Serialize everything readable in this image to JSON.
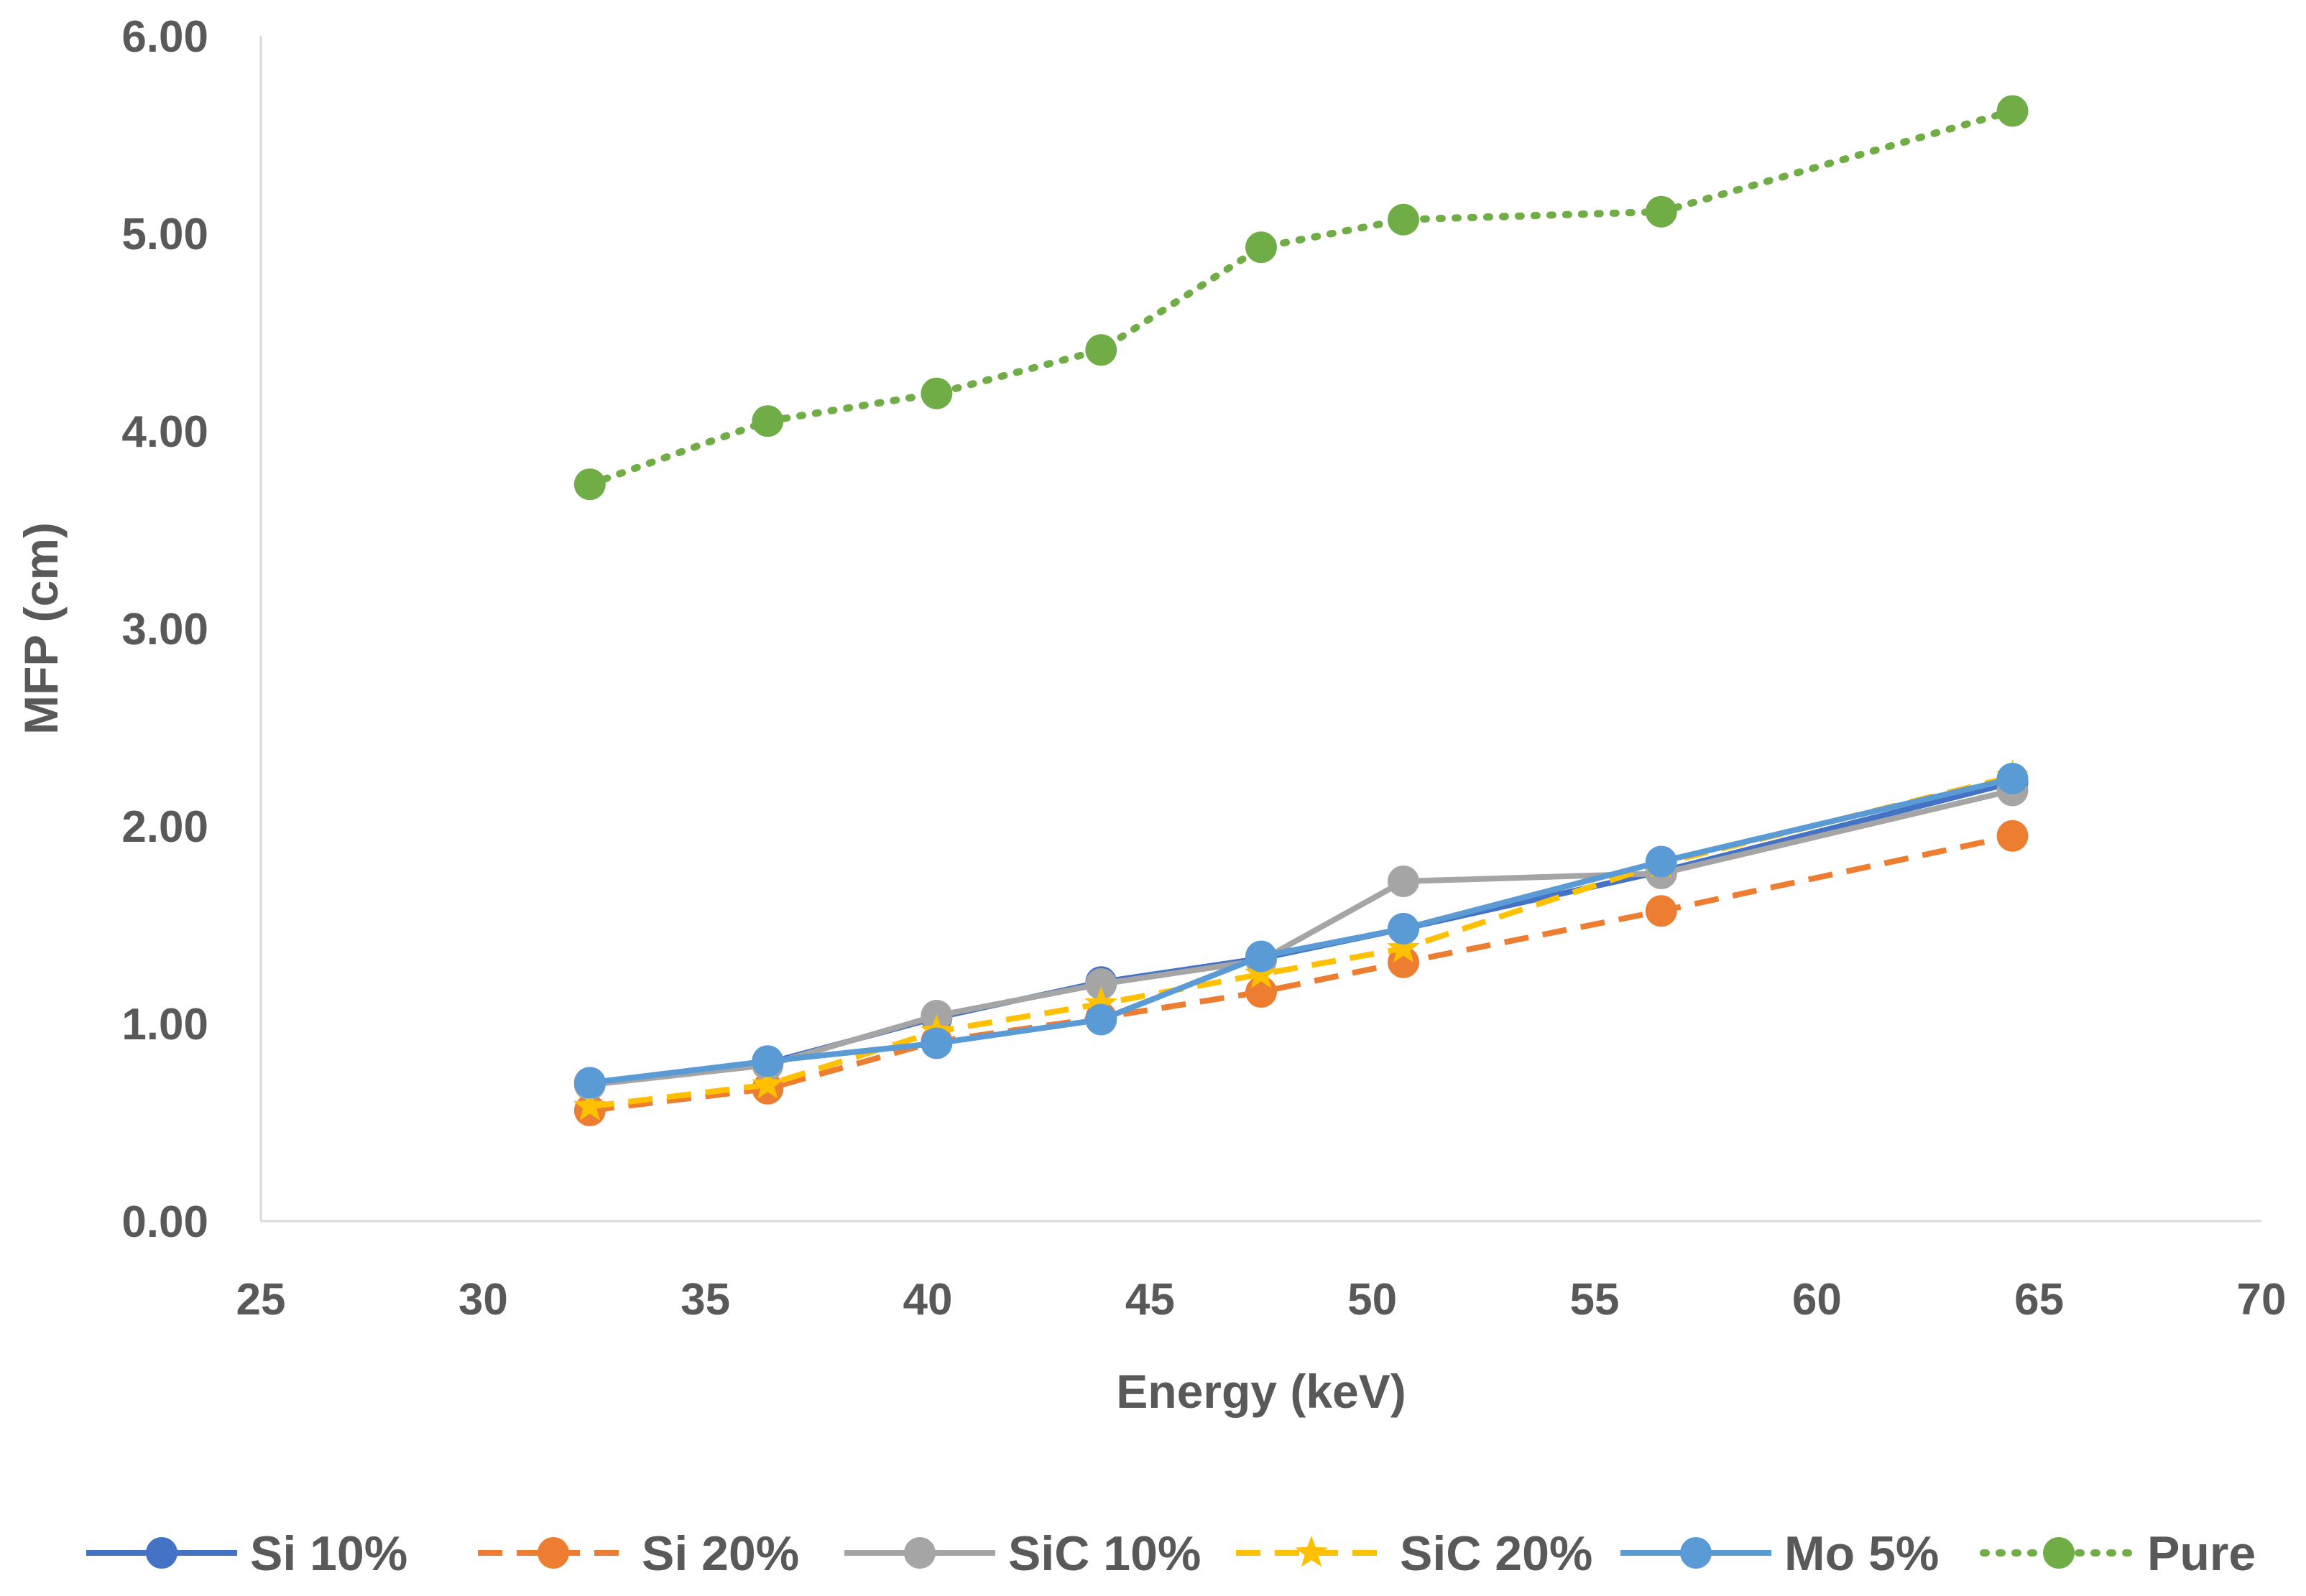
{
  "chart_data": {
    "type": "line",
    "title": "",
    "xlabel": "Energy (keV)",
    "ylabel": "MFP (cm)",
    "xlim": [
      25,
      70
    ],
    "ylim": [
      0,
      6
    ],
    "x_ticks": [
      "25",
      "30",
      "35",
      "40",
      "45",
      "50",
      "55",
      "60",
      "65",
      "70"
    ],
    "y_ticks": [
      "0.00",
      "1.00",
      "2.00",
      "3.00",
      "4.00",
      "5.00",
      "6.00"
    ],
    "grid": false,
    "legend_position": "bottom",
    "x": [
      32.4,
      36.4,
      40.2,
      43.9,
      47.5,
      50.7,
      56.5,
      64.4
    ],
    "series": [
      {
        "name": "Si 10%",
        "color": "#4472C4",
        "dash": "solid",
        "marker": "circle",
        "values": [
          0.7,
          0.8,
          1.03,
          1.21,
          1.33,
          1.48,
          1.77,
          2.22
        ]
      },
      {
        "name": "Si 20%",
        "color": "#ED7D31",
        "dash": "dashed",
        "marker": "circle",
        "values": [
          0.56,
          0.67,
          0.91,
          1.03,
          1.16,
          1.31,
          1.57,
          1.95
        ]
      },
      {
        "name": "SiC 10%",
        "color": "#A5A5A5",
        "dash": "solid",
        "marker": "circle",
        "values": [
          0.69,
          0.79,
          1.04,
          1.2,
          1.32,
          1.72,
          1.76,
          2.18
        ]
      },
      {
        "name": "SiC 20%",
        "color": "#FFC000",
        "dash": "dashed",
        "marker": "star",
        "values": [
          0.58,
          0.69,
          0.96,
          1.1,
          1.25,
          1.38,
          1.81,
          2.25
        ]
      },
      {
        "name": "Mo 5%",
        "color": "#5B9BD5",
        "dash": "solid",
        "marker": "circle",
        "values": [
          0.7,
          0.81,
          0.9,
          1.02,
          1.34,
          1.48,
          1.82,
          2.24
        ]
      },
      {
        "name": "Pure",
        "color": "#70AD47",
        "dash": "dotted",
        "marker": "circle",
        "values": [
          3.73,
          4.05,
          4.19,
          4.41,
          4.93,
          5.07,
          5.11,
          5.62
        ]
      }
    ]
  }
}
